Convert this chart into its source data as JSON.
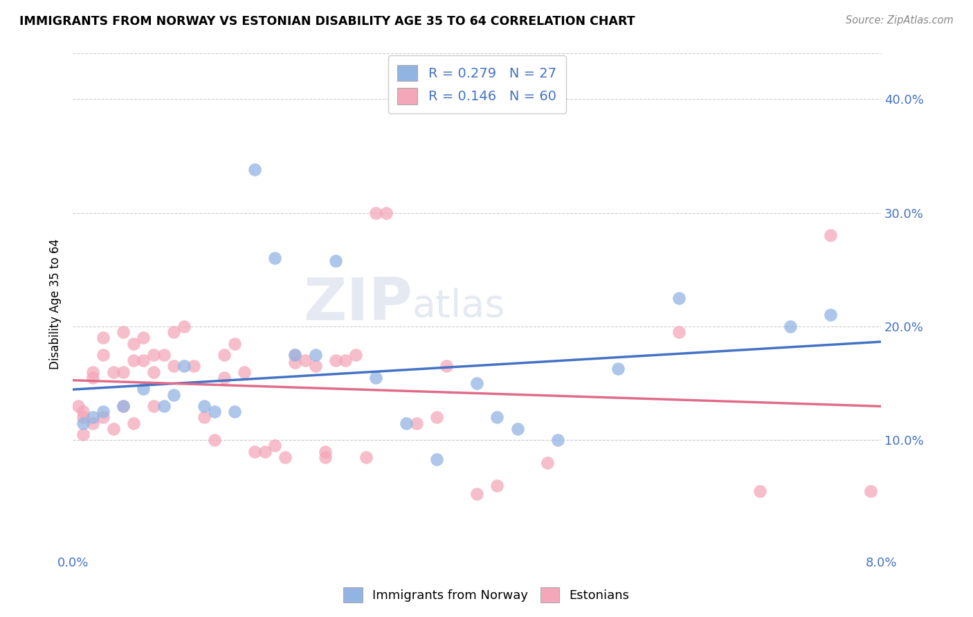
{
  "title": "IMMIGRANTS FROM NORWAY VS ESTONIAN DISABILITY AGE 35 TO 64 CORRELATION CHART",
  "source": "Source: ZipAtlas.com",
  "ylabel": "Disability Age 35 to 64",
  "xlim": [
    0.0,
    0.08
  ],
  "ylim": [
    0.0,
    0.44
  ],
  "x_ticks": [
    0.0,
    0.08
  ],
  "x_tick_labels": [
    "0.0%",
    "8.0%"
  ],
  "y_ticks": [
    0.1,
    0.2,
    0.3,
    0.4
  ],
  "y_tick_labels": [
    "10.0%",
    "20.0%",
    "30.0%",
    "40.0%"
  ],
  "norway_color": "#92b4e3",
  "estonian_color": "#f4a7b9",
  "norway_line_color": "#4472c4",
  "estonian_line_color": "#e06c8a",
  "legend_color": "#4472c4",
  "norway_R": 0.279,
  "norway_N": 27,
  "estonian_R": 0.146,
  "estonian_N": 60,
  "watermark_zip": "ZIP",
  "watermark_atlas": "atlas",
  "norway_x": [
    0.001,
    0.002,
    0.003,
    0.005,
    0.007,
    0.009,
    0.01,
    0.011,
    0.013,
    0.014,
    0.016,
    0.018,
    0.02,
    0.022,
    0.024,
    0.026,
    0.03,
    0.033,
    0.036,
    0.04,
    0.042,
    0.044,
    0.048,
    0.054,
    0.06,
    0.071,
    0.075
  ],
  "norway_y": [
    0.115,
    0.12,
    0.125,
    0.13,
    0.145,
    0.13,
    0.14,
    0.165,
    0.13,
    0.125,
    0.125,
    0.338,
    0.26,
    0.175,
    0.175,
    0.258,
    0.155,
    0.115,
    0.083,
    0.15,
    0.12,
    0.11,
    0.1,
    0.163,
    0.225,
    0.2,
    0.21
  ],
  "estonian_x": [
    0.0005,
    0.001,
    0.001,
    0.001,
    0.002,
    0.002,
    0.002,
    0.003,
    0.003,
    0.003,
    0.004,
    0.004,
    0.005,
    0.005,
    0.005,
    0.006,
    0.006,
    0.006,
    0.007,
    0.007,
    0.008,
    0.008,
    0.008,
    0.009,
    0.01,
    0.01,
    0.011,
    0.012,
    0.013,
    0.014,
    0.015,
    0.015,
    0.016,
    0.017,
    0.018,
    0.019,
    0.02,
    0.021,
    0.022,
    0.022,
    0.023,
    0.024,
    0.025,
    0.025,
    0.026,
    0.027,
    0.028,
    0.029,
    0.03,
    0.031,
    0.034,
    0.036,
    0.037,
    0.04,
    0.042,
    0.047,
    0.06,
    0.068,
    0.075,
    0.079
  ],
  "estonian_y": [
    0.13,
    0.125,
    0.12,
    0.105,
    0.16,
    0.155,
    0.115,
    0.19,
    0.175,
    0.12,
    0.16,
    0.11,
    0.195,
    0.16,
    0.13,
    0.185,
    0.17,
    0.115,
    0.19,
    0.17,
    0.175,
    0.16,
    0.13,
    0.175,
    0.195,
    0.165,
    0.2,
    0.165,
    0.12,
    0.1,
    0.175,
    0.155,
    0.185,
    0.16,
    0.09,
    0.09,
    0.095,
    0.085,
    0.175,
    0.168,
    0.17,
    0.165,
    0.09,
    0.085,
    0.17,
    0.17,
    0.175,
    0.085,
    0.3,
    0.3,
    0.115,
    0.12,
    0.165,
    0.053,
    0.06,
    0.08,
    0.195,
    0.055,
    0.28,
    0.055
  ]
}
